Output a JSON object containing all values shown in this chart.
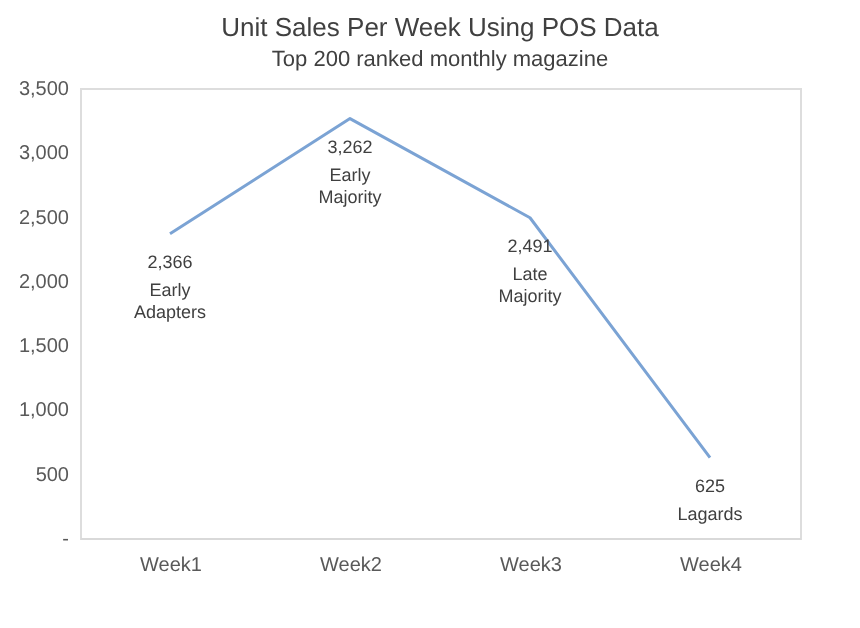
{
  "chart_data": {
    "type": "line",
    "title": "Unit Sales Per Week Using POS Data",
    "subtitle": "Top 200 ranked monthly magazine",
    "categories": [
      "Week1",
      "Week2",
      "Week3",
      "Week4"
    ],
    "series": [
      {
        "color": "#7ba3d4",
        "values": [
          2366,
          3262,
          2491,
          625
        ],
        "value_labels": [
          "2,366",
          "3,262",
          "2,491",
          "625"
        ]
      }
    ],
    "ylim": [
      0,
      3500
    ],
    "yticks": [
      {
        "value": 0,
        "label": "-"
      },
      {
        "value": 500,
        "label": "500"
      },
      {
        "value": 1000,
        "label": "1,000"
      },
      {
        "value": 1500,
        "label": "1,500"
      },
      {
        "value": 2000,
        "label": "2,000"
      },
      {
        "value": 2500,
        "label": "2,500"
      },
      {
        "value": 3000,
        "label": "3,000"
      },
      {
        "value": 3500,
        "label": "3,500"
      }
    ],
    "grid": false,
    "marker": "none",
    "line_style": "solid",
    "annotations": [
      "Early\nAdapters",
      "Early\nMajority",
      "Late\nMajority",
      "Lagards"
    ]
  }
}
